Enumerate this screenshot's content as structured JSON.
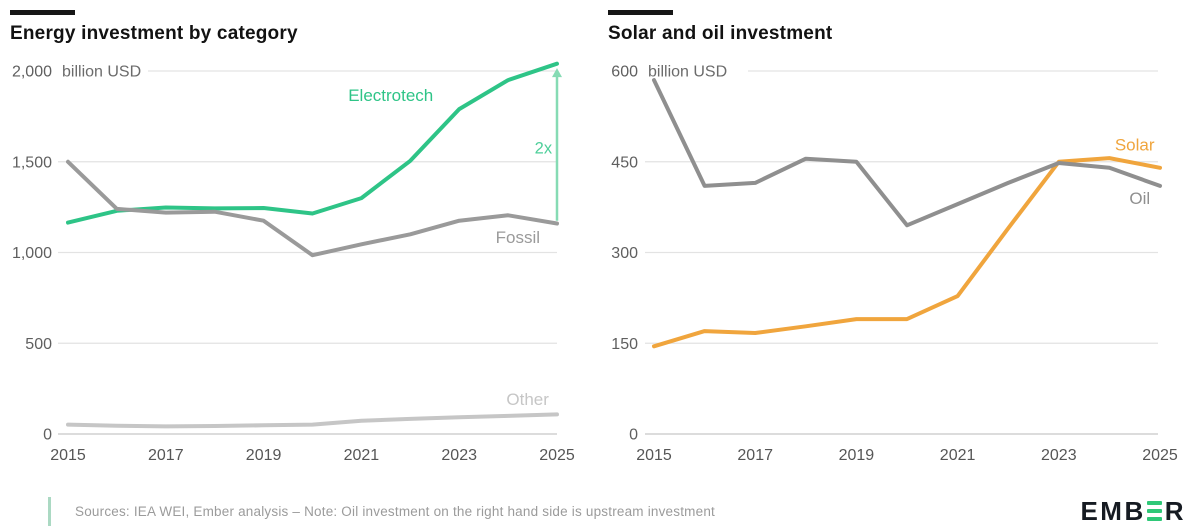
{
  "chart_data": [
    {
      "type": "line",
      "title": "Energy investment by category",
      "unit_label": "billion USD",
      "x": [
        2015,
        2016,
        2017,
        2018,
        2019,
        2020,
        2021,
        2022,
        2023,
        2024,
        2025
      ],
      "xlim": [
        2015,
        2025
      ],
      "ylim": [
        0,
        2000
      ],
      "grid": true,
      "legend_position": "inline-labels",
      "xticks": [
        {
          "value": 2015,
          "label": "2015"
        },
        {
          "value": 2017,
          "label": "2017"
        },
        {
          "value": 2019,
          "label": "2019"
        },
        {
          "value": 2021,
          "label": "2021"
        },
        {
          "value": 2023,
          "label": "2023"
        },
        {
          "value": 2025,
          "label": "2025"
        }
      ],
      "yticks": [
        {
          "value": 0,
          "label": "0"
        },
        {
          "value": 500,
          "label": "500"
        },
        {
          "value": 1000,
          "label": "1,000"
        },
        {
          "value": 1500,
          "label": "1,500"
        },
        {
          "value": 2000,
          "label": "2,000"
        }
      ],
      "series": [
        {
          "name": "Electrotech",
          "color": "#2ec487",
          "values": [
            1165,
            1230,
            1248,
            1243,
            1245,
            1215,
            1300,
            1505,
            1790,
            1950,
            2040
          ],
          "label_at": {
            "x": 2021.6,
            "y": 1835
          }
        },
        {
          "name": "Fossil",
          "color": "#9a9a9a",
          "values": [
            1500,
            1240,
            1220,
            1225,
            1175,
            985,
            1045,
            1100,
            1175,
            1205,
            1160
          ],
          "label_at": {
            "x": 2024.2,
            "y": 1052
          }
        },
        {
          "name": "Other",
          "color": "#c6c6c6",
          "values": [
            52,
            45,
            42,
            44,
            48,
            52,
            73,
            83,
            92,
            100,
            108
          ],
          "label_at": {
            "x": 2024.4,
            "y": 160
          }
        }
      ],
      "annotation": {
        "text": "2x",
        "x": 2025,
        "from_y": 1175,
        "to_y": 2010,
        "label_x": 2024.9,
        "label_y": 1545,
        "line_color": "#86dbb4",
        "text_color": "#4ecf9a"
      }
    },
    {
      "type": "line",
      "title": "Solar and oil investment",
      "unit_label": "billion USD",
      "x": [
        2015,
        2016,
        2017,
        2018,
        2019,
        2020,
        2021,
        2022,
        2023,
        2024,
        2025
      ],
      "xlim": [
        2015,
        2025
      ],
      "ylim": [
        0,
        600
      ],
      "grid": true,
      "legend_position": "inline-labels",
      "xticks": [
        {
          "value": 2015,
          "label": "2015"
        },
        {
          "value": 2017,
          "label": "2017"
        },
        {
          "value": 2019,
          "label": "2019"
        },
        {
          "value": 2021,
          "label": "2021"
        },
        {
          "value": 2023,
          "label": "2023"
        },
        {
          "value": 2025,
          "label": "2025"
        }
      ],
      "yticks": [
        {
          "value": 0,
          "label": "0"
        },
        {
          "value": 150,
          "label": "150"
        },
        {
          "value": 300,
          "label": "300"
        },
        {
          "value": 450,
          "label": "450"
        },
        {
          "value": 600,
          "label": "600"
        }
      ],
      "series": [
        {
          "name": "Solar",
          "color": "#f0a53d",
          "values": [
            145,
            170,
            167,
            178,
            190,
            190,
            228,
            340,
            450,
            456,
            440
          ],
          "label_at": {
            "x": 2024.5,
            "y": 469
          }
        },
        {
          "name": "Oil",
          "color": "#8f8f8f",
          "values": [
            585,
            410,
            415,
            455,
            450,
            345,
            380,
            415,
            448,
            440,
            410
          ],
          "label_at": {
            "x": 2024.6,
            "y": 380
          }
        }
      ],
      "annotation": null
    }
  ],
  "footer": {
    "source_note": "Sources: IEA WEI, Ember analysis – Note: Oil investment on the right hand side is upstream investment"
  },
  "logo": {
    "prefix": "EMB",
    "suffix": "R"
  }
}
